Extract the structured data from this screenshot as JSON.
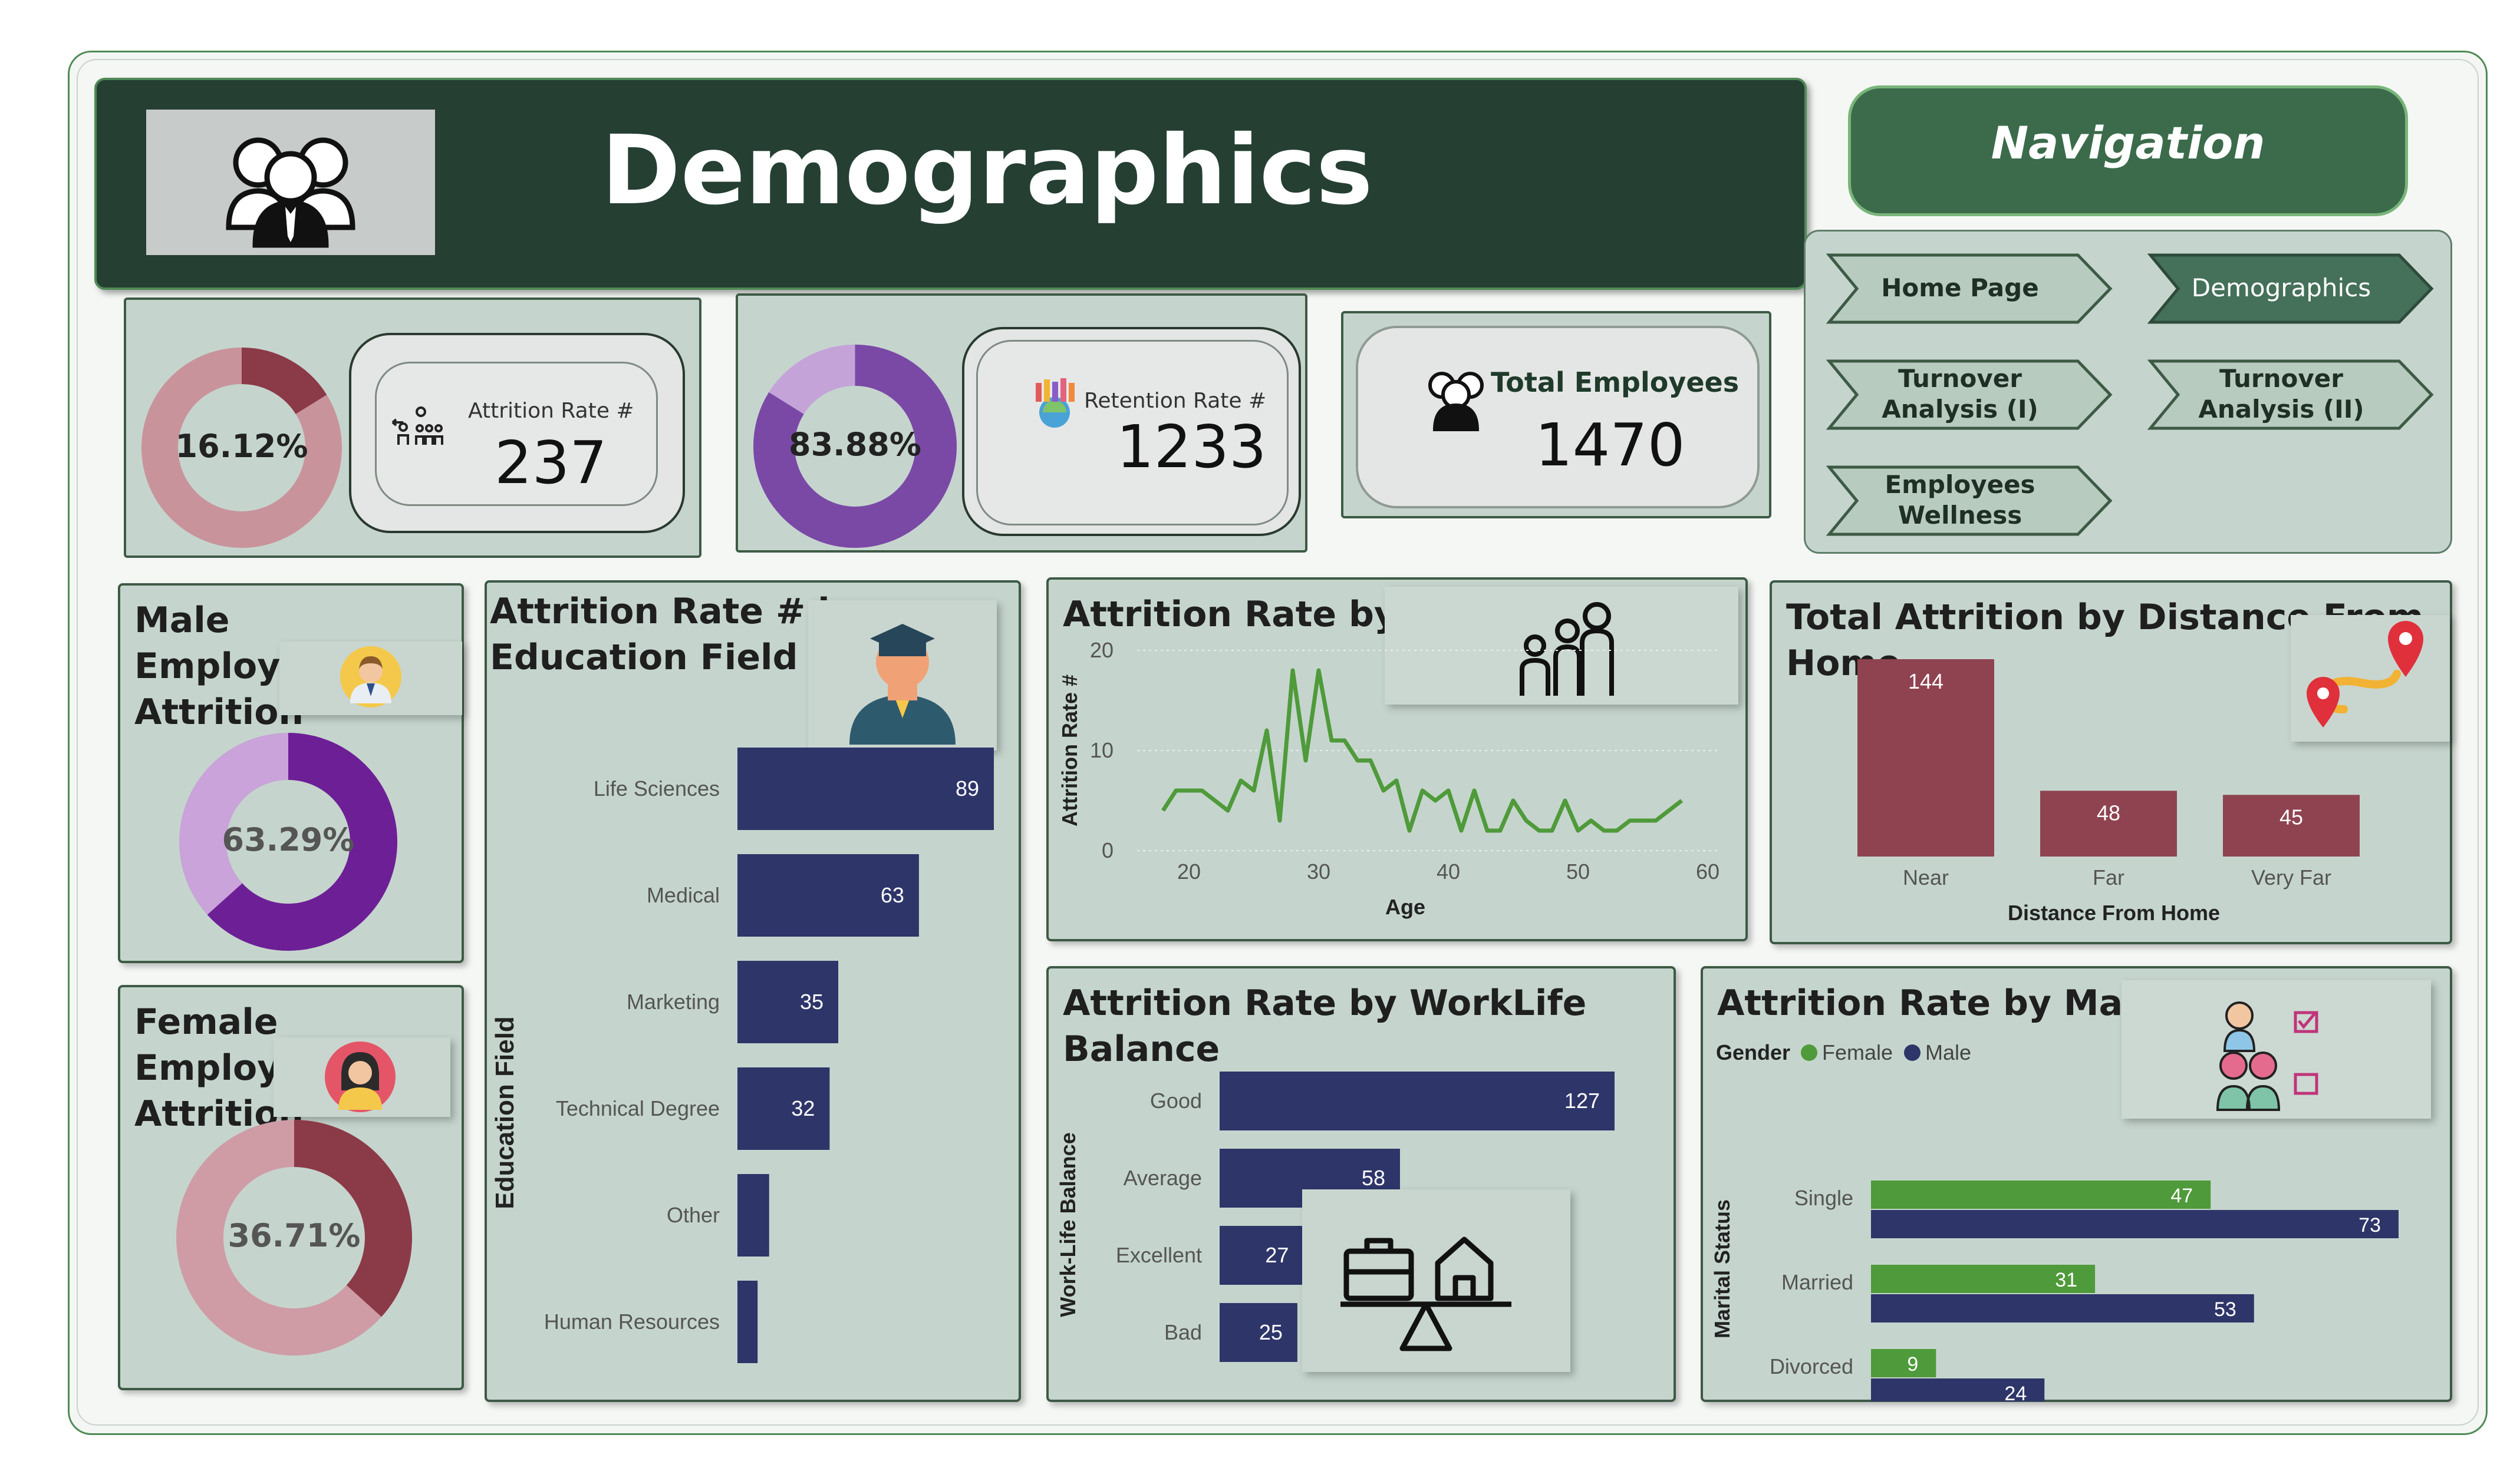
{
  "header": {
    "title": "Demographics",
    "logo_icon": "people-group-icon"
  },
  "navigation": {
    "title": "Navigation",
    "buttons": [
      {
        "label": "Home Page",
        "active": false
      },
      {
        "label": "Demographics",
        "active": true
      },
      {
        "label": "Turnover Analysis (I)",
        "active": false
      },
      {
        "label": "Turnover Analysis (II)",
        "active": false
      },
      {
        "label": "Employees Wellness",
        "active": false
      }
    ]
  },
  "kpis": {
    "attrition": {
      "percent_label": "16.12%",
      "percent": 16.12,
      "label": "Attrition Rate #",
      "value": "237",
      "colors": [
        "#8b3a48",
        "#c9939c"
      ]
    },
    "retention": {
      "percent_label": "83.88%",
      "percent": 83.88,
      "label": "Retention Rate #",
      "value": "1233",
      "colors": [
        "#7a49a6",
        "#c4a4d8"
      ]
    },
    "total": {
      "label": "Total Employees",
      "value": "1470"
    }
  },
  "male_attrition": {
    "title": "Male Employee Attrition",
    "percent_label": "63.29%",
    "percent": 63.29,
    "colors": [
      "#6d1f96",
      "#c9a3d9"
    ]
  },
  "female_attrition": {
    "title": "Female Employee Attrition",
    "percent_label": "36.71%",
    "percent": 36.71,
    "colors": [
      "#8b3a48",
      "#cf9ca5"
    ]
  },
  "chart_data": [
    {
      "type": "bar",
      "title": "Attrition Rate # by Education Field",
      "ylabel": "Education Field",
      "categories": [
        "Life Sciences",
        "Medical",
        "Marketing",
        "Technical Degree",
        "Other",
        "Human Resources"
      ],
      "values": [
        89,
        63,
        35,
        32,
        11,
        7
      ],
      "value_labels": [
        "89",
        "63",
        "35",
        "32",
        "",
        ""
      ],
      "color": "#2e3569"
    },
    {
      "type": "line",
      "title": "Attrition Rate by Age",
      "xlabel": "Age",
      "ylabel": "Attrition Rate #",
      "xlim": [
        16,
        61
      ],
      "ylim": [
        0,
        20
      ],
      "xticks": [
        "20",
        "30",
        "40",
        "50",
        "60"
      ],
      "yticks": [
        "0",
        "10",
        "20"
      ],
      "x": [
        18,
        19,
        20,
        21,
        22,
        23,
        24,
        25,
        26,
        27,
        28,
        29,
        30,
        31,
        32,
        33,
        34,
        35,
        36,
        37,
        38,
        39,
        40,
        41,
        42,
        43,
        44,
        45,
        46,
        47,
        48,
        49,
        50,
        51,
        52,
        53,
        54,
        55,
        56,
        57,
        58
      ],
      "y": [
        4,
        6,
        6,
        6,
        5,
        4,
        7,
        6,
        12,
        3,
        18,
        9,
        18,
        11,
        11,
        9,
        9,
        6,
        7,
        2,
        6,
        5,
        6,
        2,
        6,
        2,
        2,
        5,
        3,
        2,
        2,
        5,
        2,
        3,
        2,
        2,
        3,
        3,
        3,
        4,
        5
      ],
      "color": "#4f9a3a"
    },
    {
      "type": "bar",
      "title": "Total Attrition by Distance From Home",
      "xlabel": "Distance From Home",
      "categories": [
        "Near",
        "Far",
        "Very Far"
      ],
      "values": [
        144,
        48,
        45
      ],
      "color": "#8f4350"
    },
    {
      "type": "bar",
      "title": "Attrition Rate by WorkLife Balance",
      "ylabel": "Work-Life Balance",
      "categories": [
        "Good",
        "Average",
        "Excellent",
        "Bad"
      ],
      "values": [
        127,
        58,
        27,
        25
      ],
      "color": "#2e3569"
    },
    {
      "type": "bar",
      "title": "Attrition Rate by Marital Status",
      "ylabel": "Marital Status",
      "legend_title": "Gender",
      "categories": [
        "Single",
        "Married",
        "Divorced"
      ],
      "series": [
        {
          "name": "Female",
          "values": [
            47,
            31,
            9
          ],
          "color": "#4f9a3a"
        },
        {
          "name": "Male",
          "values": [
            73,
            53,
            24
          ],
          "color": "#2e3569"
        }
      ]
    }
  ]
}
